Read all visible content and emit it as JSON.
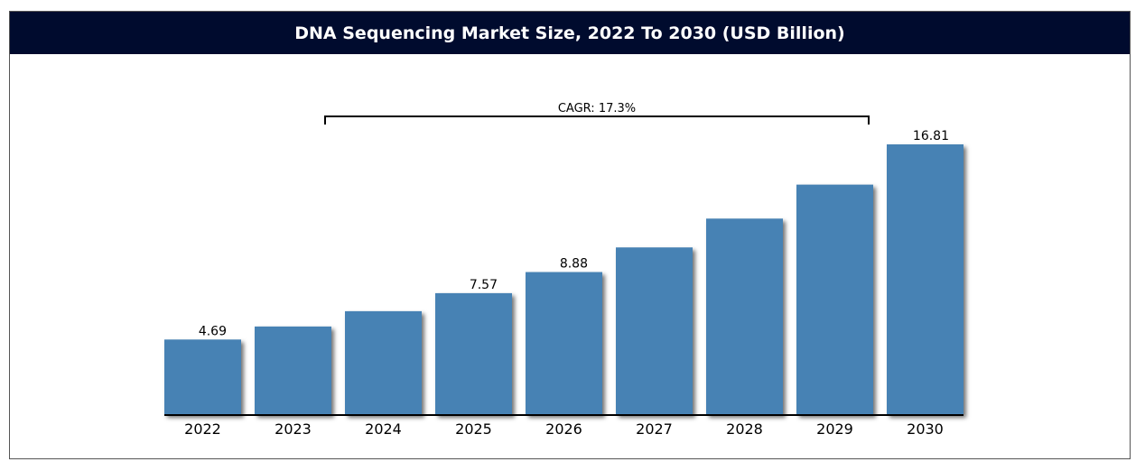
{
  "title": "DNA Sequencing Market Size, 2022 To 2030 (USD Billion)",
  "chart_data": {
    "type": "bar",
    "title": "DNA Sequencing Market Size, 2022 To 2030 (USD Billion)",
    "xlabel": "",
    "ylabel": "",
    "categories": [
      "2022",
      "2023",
      "2024",
      "2025",
      "2026",
      "2027",
      "2028",
      "2029",
      "2030"
    ],
    "values": [
      4.69,
      5.5,
      6.45,
      7.57,
      8.88,
      10.41,
      12.2,
      14.31,
      16.81
    ],
    "data_labels": [
      "4.69",
      "",
      "",
      "7.57",
      "8.88",
      "",
      "",
      "",
      "16.81"
    ],
    "ylim": [
      0,
      16.81
    ],
    "grid": false,
    "bar_color": "#4682b4",
    "annotation": {
      "text": "CAGR: 17.3%",
      "from_category": "2024",
      "to_category": "2029"
    }
  }
}
